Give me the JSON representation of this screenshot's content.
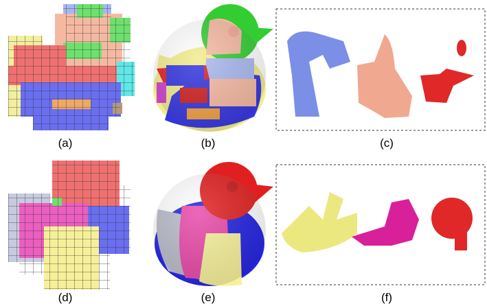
{
  "captions": [
    "(a)",
    "(b)",
    "(c)",
    "(d)",
    "(e)",
    "(f)"
  ]
}
